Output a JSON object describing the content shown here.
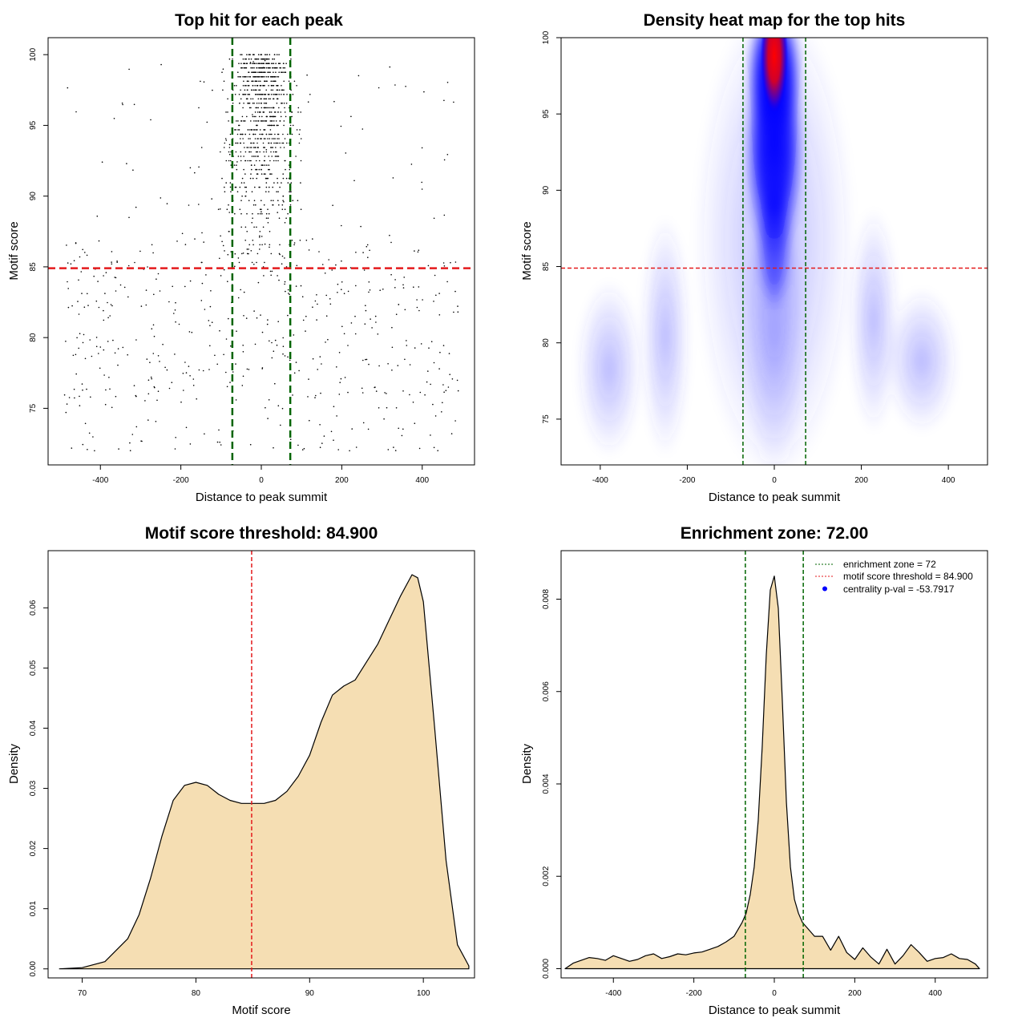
{
  "colors": {
    "axis": "#000000",
    "green_line": "#006400",
    "red_line": "#e41a1c",
    "fill": "#f5deb3",
    "points": "#000000",
    "heat_low": "#ffffff",
    "heat_mid": "#0000ff",
    "heat_high": "#ff0000",
    "legend_point": "#0000ff"
  },
  "chart_data": [
    {
      "type": "scatter",
      "title": "Top hit for each peak",
      "xlabel": "Distance to peak summit",
      "ylabel": "Motif score",
      "xlim": [
        -530,
        530
      ],
      "ylim": [
        71,
        101.2
      ],
      "xticks": [
        -400,
        -200,
        0,
        200,
        400
      ],
      "yticks": [
        75,
        80,
        85,
        90,
        95,
        100
      ],
      "xtick_labels": [
        "-400",
        "-200",
        "0",
        "200",
        "400"
      ],
      "ytick_labels": [
        "75",
        "80",
        "85",
        "90",
        "95",
        "100"
      ],
      "vlines": [
        -72,
        72
      ],
      "hline": 84.9,
      "point_distribution": {
        "n_central": 900,
        "n_background": 560,
        "central_sd": 32,
        "x_range": [
          -490,
          490
        ],
        "y_range": [
          72,
          100
        ]
      }
    },
    {
      "type": "heatmap",
      "title": "Density heat map for the top hits",
      "xlabel": "Distance to peak summit",
      "ylabel": "Motif score",
      "xlim": [
        -490,
        490
      ],
      "ylim": [
        72,
        100
      ],
      "xticks": [
        -400,
        -200,
        0,
        200,
        400
      ],
      "yticks": [
        75,
        80,
        85,
        90,
        95,
        100
      ],
      "xtick_labels": [
        "-400",
        "-200",
        "0",
        "200",
        "400"
      ],
      "ytick_labels": [
        "75",
        "80",
        "85",
        "90",
        "95",
        "100"
      ],
      "vlines": [
        -72,
        72
      ],
      "hline": 84.9,
      "peak": {
        "x": 0,
        "y": 99,
        "color": "red"
      }
    },
    {
      "type": "area",
      "title": "Motif score threshold: 84.900",
      "xlabel": "Motif score",
      "ylabel": "Density",
      "xlim": [
        67,
        104.5
      ],
      "ylim": [
        -0.0015,
        0.0695
      ],
      "xticks": [
        70,
        80,
        90,
        100
      ],
      "yticks": [
        0.0,
        0.01,
        0.02,
        0.03,
        0.04,
        0.05,
        0.06
      ],
      "xtick_labels": [
        "70",
        "80",
        "90",
        "100"
      ],
      "ytick_labels": [
        "0.00",
        "0.01",
        "0.02",
        "0.03",
        "0.04",
        "0.05",
        "0.06"
      ],
      "vline": 84.9,
      "x": [
        68,
        70,
        72,
        74,
        75,
        76,
        77,
        78,
        79,
        80,
        81,
        82,
        83,
        84,
        85,
        86,
        87,
        88,
        89,
        90,
        91,
        92,
        93,
        94,
        95,
        96,
        97,
        98,
        99,
        99.5,
        100,
        101,
        102,
        103,
        104
      ],
      "y": [
        0.0,
        0.0002,
        0.0012,
        0.005,
        0.009,
        0.015,
        0.022,
        0.028,
        0.0305,
        0.031,
        0.0305,
        0.029,
        0.028,
        0.0275,
        0.0275,
        0.0275,
        0.028,
        0.0295,
        0.032,
        0.0355,
        0.041,
        0.0455,
        0.047,
        0.048,
        0.051,
        0.054,
        0.058,
        0.062,
        0.0655,
        0.065,
        0.061,
        0.04,
        0.018,
        0.004,
        0.0005
      ]
    },
    {
      "type": "area",
      "title": "Enrichment zone: 72.00",
      "xlabel": "Distance to peak summit",
      "ylabel": "Density",
      "xlim": [
        -530,
        530
      ],
      "ylim": [
        -0.0002,
        0.00905
      ],
      "xticks": [
        -400,
        -200,
        0,
        200,
        400
      ],
      "yticks": [
        0.0,
        0.002,
        0.004,
        0.006,
        0.008
      ],
      "xtick_labels": [
        "-400",
        "-200",
        "0",
        "200",
        "400"
      ],
      "ytick_labels": [
        "0.000",
        "0.002",
        "0.004",
        "0.006",
        "0.008"
      ],
      "vlines": [
        -72,
        72
      ],
      "x": [
        -520,
        -500,
        -480,
        -460,
        -440,
        -420,
        -400,
        -380,
        -360,
        -340,
        -320,
        -300,
        -280,
        -260,
        -240,
        -220,
        -200,
        -180,
        -160,
        -140,
        -120,
        -100,
        -80,
        -70,
        -60,
        -50,
        -40,
        -30,
        -20,
        -10,
        0,
        10,
        20,
        30,
        40,
        50,
        60,
        70,
        80,
        100,
        110,
        120,
        140,
        160,
        180,
        200,
        220,
        240,
        260,
        280,
        300,
        320,
        340,
        360,
        380,
        400,
        420,
        440,
        460,
        480,
        500,
        510
      ],
      "y": [
        0.0,
        0.00012,
        0.00018,
        0.00024,
        0.00022,
        0.00018,
        0.00028,
        0.00022,
        0.00016,
        0.0002,
        0.00028,
        0.00032,
        0.00022,
        0.00026,
        0.00032,
        0.0003,
        0.00034,
        0.00036,
        0.00042,
        0.00048,
        0.00058,
        0.0007,
        0.001,
        0.0012,
        0.0016,
        0.0022,
        0.0032,
        0.0048,
        0.0068,
        0.0082,
        0.0085,
        0.0078,
        0.0058,
        0.0036,
        0.0022,
        0.0015,
        0.0012,
        0.001,
        0.0009,
        0.0007,
        0.0007,
        0.0007,
        0.0004,
        0.0007,
        0.00035,
        0.0002,
        0.00045,
        0.00025,
        0.0001,
        0.00042,
        0.0001,
        0.00028,
        0.00052,
        0.00035,
        0.00016,
        0.00022,
        0.00024,
        0.00032,
        0.00022,
        0.0002,
        0.0001,
        0.0
      ],
      "legend": [
        {
          "label": "enrichment zone = 72",
          "style": "dotted",
          "color": "#006400"
        },
        {
          "label": "motif score threshold = 84.900",
          "style": "dotted",
          "color": "#e41a1c"
        },
        {
          "label": "centrality p-val = -53.7917",
          "style": "point",
          "color": "#0000ff"
        }
      ]
    }
  ]
}
